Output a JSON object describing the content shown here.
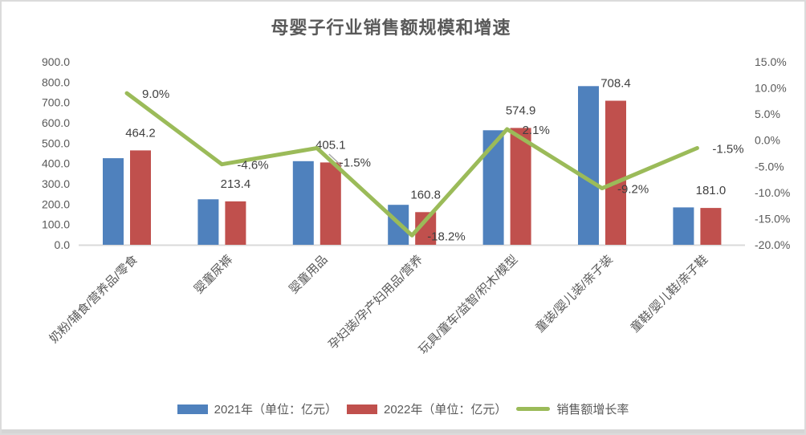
{
  "chart_data": {
    "type": "combo-bar-line",
    "title": "母婴子行业销售额规模和增速",
    "categories": [
      "奶粉/辅食/营养品/零食",
      "婴童尿裤",
      "婴童用品",
      "孕妇装/孕产妇用品/营养",
      "玩具/童车/益智/积木/模型",
      "童装/婴儿装/亲子装",
      "童鞋/婴儿鞋/亲子鞋"
    ],
    "series": [
      {
        "name": "2021年（单位：亿元）",
        "type": "bar",
        "axis": "left",
        "color": "#4F81BD",
        "values": [
          425.9,
          223.7,
          411.3,
          196.6,
          563.1,
          780.2,
          183.8
        ]
      },
      {
        "name": "2022年（单位：亿元）",
        "type": "bar",
        "axis": "left",
        "color": "#C0504D",
        "values": [
          464.2,
          213.4,
          405.1,
          160.8,
          574.9,
          708.4,
          181.0
        ],
        "data_labels": [
          "464.2",
          "213.4",
          "405.1",
          "160.8",
          "574.9",
          "708.4",
          "181.0"
        ]
      },
      {
        "name": "销售额增长率",
        "type": "line",
        "axis": "right",
        "color": "#9BBB59",
        "values": [
          9.0,
          -4.6,
          -1.5,
          -18.2,
          2.1,
          -9.2,
          -1.5
        ],
        "data_labels": [
          "9.0%",
          "-4.6%",
          "-1.5%",
          "-18.2%",
          "2.1%",
          "-9.2%",
          "-1.5%"
        ]
      }
    ],
    "left_axis": {
      "min": 0,
      "max": 900,
      "step": 100,
      "tick_labels": [
        "900.0",
        "800.0",
        "700.0",
        "600.0",
        "500.0",
        "400.0",
        "300.0",
        "200.0",
        "100.0",
        "0.0"
      ]
    },
    "right_axis": {
      "min": -20,
      "max": 15,
      "step": 5,
      "tick_labels": [
        "15.0%",
        "10.0%",
        "5.0%",
        "0.0%",
        "-5.0%",
        "-10.0%",
        "-15.0%",
        "-20.0%"
      ]
    },
    "grid": false,
    "legend_position": "bottom"
  },
  "colors": {
    "axis_text": "#595959",
    "category_text": "#595959",
    "data_label_text": "#404040",
    "axis_line": "#D9D9D9",
    "leader_line": "#A6A6A6",
    "frame_border": "#DBDBDB",
    "bottom_strip": "#D5D5D5",
    "background": "#FFFFFF"
  }
}
